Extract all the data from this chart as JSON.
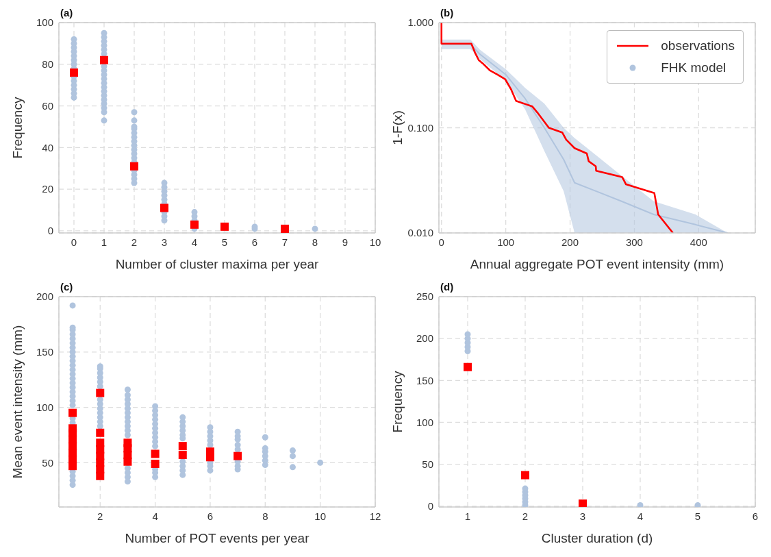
{
  "chart_data": [
    {
      "type": "scatter",
      "title": "(a)",
      "xlabel": "Number of cluster maxima per year",
      "ylabel": "Frequency",
      "xlim": [
        -0.5,
        10
      ],
      "xticks": [
        0,
        1,
        2,
        3,
        4,
        5,
        6,
        7,
        8,
        9,
        10
      ],
      "ylim": [
        -1,
        100
      ],
      "yticks": [
        0,
        20,
        40,
        60,
        80,
        100
      ],
      "grid": true,
      "series": [
        {
          "color": "#b0c4de",
          "marker": "circle",
          "x": [
            0,
            0,
            0,
            0,
            0,
            0,
            0,
            0,
            0,
            0,
            0,
            0,
            0,
            0,
            1,
            1,
            1,
            1,
            1,
            1,
            1,
            1,
            1,
            1,
            1,
            1,
            1,
            1,
            1,
            1,
            1,
            1,
            1,
            2,
            2,
            2,
            2,
            2,
            2,
            2,
            2,
            2,
            2,
            2,
            2,
            2,
            2,
            2,
            2,
            3,
            3,
            3,
            3,
            3,
            3,
            3,
            3,
            3,
            4,
            4,
            4,
            4,
            6,
            6,
            8
          ],
          "values": [
            64,
            66,
            68,
            70,
            72,
            74,
            78,
            80,
            82,
            84,
            86,
            88,
            90,
            92,
            53,
            57,
            59,
            61,
            63,
            65,
            67,
            69,
            71,
            73,
            75,
            77,
            79,
            85,
            87,
            89,
            91,
            93,
            95,
            23,
            25,
            27,
            29,
            33,
            35,
            37,
            39,
            41,
            43,
            45,
            47,
            49,
            50,
            53,
            57,
            5,
            7,
            9,
            13,
            15,
            17,
            19,
            21,
            23,
            1,
            5,
            7,
            9,
            1,
            2,
            1
          ]
        },
        {
          "color": "#ff0000",
          "marker": "square",
          "x": [
            0,
            1,
            2,
            3,
            4,
            5,
            7
          ],
          "values": [
            76,
            82,
            31,
            11,
            3,
            2,
            1
          ]
        }
      ]
    },
    {
      "type": "line",
      "title": "(b)",
      "xlabel": "Annual aggregate POT event intensity (mm)",
      "ylabel": "1-F(x)",
      "xlim": [
        -4,
        488
      ],
      "xticks": [
        0,
        100,
        200,
        300,
        400
      ],
      "ylim": [
        0.01,
        1
      ],
      "yticks": [
        {
          "value": 0.01,
          "label": "0.010"
        },
        {
          "value": 0.1,
          "label": "0.100"
        },
        {
          "value": 1,
          "label": "1.000"
        }
      ],
      "log": true,
      "grid": true,
      "legend": "top right",
      "series": [
        {
          "name": "FHK model",
          "color": "#b0c4de",
          "x": [
            0,
            45,
            60,
            100,
            130,
            160,
            190,
            207,
            240,
            280,
            330,
            395,
            445
          ],
          "values": [
            0.62,
            0.62,
            0.5,
            0.32,
            0.19,
            0.1,
            0.05,
            0.03,
            0.025,
            0.02,
            0.015,
            0.012,
            0.01
          ],
          "lower": [
            0.56,
            0.56,
            0.45,
            0.28,
            0.15,
            0.06,
            0.025,
            0.01,
            0.01,
            0.01,
            0.01,
            0.01,
            0.01
          ],
          "upper": [
            0.69,
            0.69,
            0.55,
            0.36,
            0.24,
            0.17,
            0.1,
            0.08,
            0.055,
            0.035,
            0.02,
            0.015,
            0.01
          ]
        },
        {
          "name": "observations",
          "color": "#ff0000",
          "x": [
            0,
            0,
            46.5,
            52,
            58,
            64,
            75.6,
            87,
            99,
            108.5,
            116,
            128,
            141,
            149,
            167,
            188,
            194,
            207,
            226,
            229,
            240,
            240.5,
            281,
            287,
            331,
            337,
            360
          ],
          "values": [
            1,
            0.63,
            0.63,
            0.52,
            0.44,
            0.41,
            0.35,
            0.32,
            0.29,
            0.23,
            0.18,
            0.17,
            0.16,
            0.14,
            0.1,
            0.09,
            0.077,
            0.064,
            0.057,
            0.048,
            0.043,
            0.039,
            0.034,
            0.029,
            0.024,
            0.015,
            0.01
          ]
        }
      ]
    },
    {
      "type": "scatter",
      "title": "(c)",
      "xlabel": "Number of POT events per year",
      "ylabel": "Mean event intensity (mm)",
      "xlim": [
        0.5,
        12
      ],
      "xticks": [
        2,
        4,
        6,
        8,
        10,
        12
      ],
      "ylim": [
        10,
        200
      ],
      "yticks": [
        50,
        100,
        150,
        200
      ],
      "grid": true,
      "series": [
        {
          "color": "#b0c4de",
          "marker": "circle",
          "x": [
            1,
            1,
            1,
            1,
            1,
            1,
            1,
            1,
            1,
            1,
            1,
            1,
            1,
            1,
            1,
            1,
            1,
            1,
            1,
            1,
            1,
            1,
            1,
            1,
            1,
            1,
            2,
            2,
            2,
            2,
            2,
            2,
            2,
            2,
            2,
            2,
            2,
            2,
            2,
            3,
            3,
            3,
            3,
            3,
            3,
            3,
            3,
            3,
            3,
            3,
            3,
            3,
            3,
            3,
            4,
            4,
            4,
            4,
            4,
            4,
            4,
            4,
            4,
            4,
            4,
            4,
            4,
            5,
            5,
            5,
            5,
            5,
            5,
            5,
            5,
            5,
            5,
            6,
            6,
            6,
            6,
            6,
            6,
            6,
            6,
            7,
            7,
            7,
            7,
            7,
            7,
            7,
            7,
            8,
            8,
            8,
            8,
            8,
            8,
            9,
            9,
            9,
            10
          ],
          "values": [
            30,
            34,
            38,
            42,
            86,
            90,
            102,
            106,
            110,
            114,
            118,
            122,
            126,
            130,
            134,
            138,
            142,
            146,
            150,
            154,
            158,
            162,
            166,
            170,
            172,
            192,
            83,
            87,
            91,
            95,
            99,
            103,
            107,
            119,
            123,
            127,
            131,
            135,
            137,
            33,
            37,
            41,
            45,
            75,
            79,
            83,
            87,
            91,
            95,
            99,
            103,
            107,
            111,
            116,
            37,
            41,
            44,
            65,
            69,
            73,
            77,
            81,
            85,
            89,
            93,
            97,
            101,
            39,
            43,
            47,
            51,
            72,
            75,
            79,
            83,
            87,
            91,
            43,
            47,
            50,
            66,
            70,
            74,
            78,
            82,
            44,
            47,
            51,
            62,
            66,
            71,
            74,
            78,
            48,
            52,
            56,
            60,
            63,
            73,
            46,
            56,
            61,
            50
          ]
        },
        {
          "color": "#ff0000",
          "marker": "square",
          "x": [
            1,
            1,
            1,
            1,
            1,
            1,
            1,
            1,
            2,
            2,
            2,
            2,
            2,
            2,
            2,
            2,
            3,
            3,
            3,
            3,
            4,
            4,
            5,
            5,
            6,
            6,
            7
          ],
          "values": [
            47,
            53,
            59,
            65,
            71,
            77,
            81,
            95,
            38,
            44,
            50,
            56,
            62,
            68,
            77,
            113,
            51,
            57,
            63,
            68,
            49,
            58,
            57,
            65,
            55,
            60,
            56
          ]
        }
      ]
    },
    {
      "type": "scatter",
      "title": "(d)",
      "xlabel": "Cluster duration (d)",
      "ylabel": "Frequency",
      "xlim": [
        0.5,
        6
      ],
      "xticks": [
        1,
        2,
        3,
        4,
        5,
        6
      ],
      "ylim": [
        -1,
        250
      ],
      "yticks": [
        0,
        50,
        100,
        150,
        200,
        250
      ],
      "grid": true,
      "series": [
        {
          "color": "#b0c4de",
          "marker": "circle",
          "x": [
            1,
            1,
            1,
            1,
            1,
            2,
            2,
            2,
            2,
            2,
            2,
            4,
            5
          ],
          "values": [
            185,
            190,
            195,
            200,
            205,
            1,
            5,
            9,
            13,
            17,
            21,
            1,
            1
          ]
        },
        {
          "color": "#ff0000",
          "marker": "square",
          "x": [
            1,
            2,
            3
          ],
          "values": [
            166,
            37,
            3
          ]
        }
      ]
    }
  ]
}
